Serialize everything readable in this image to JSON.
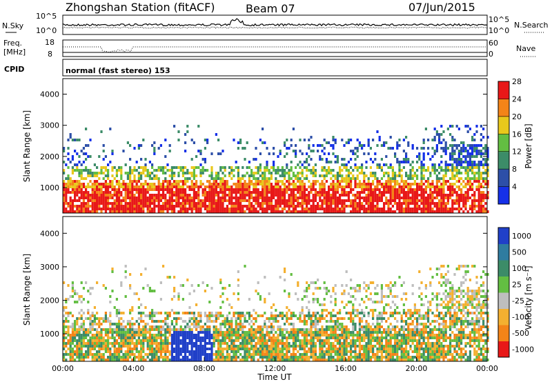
{
  "header": {
    "title": "Zhongshan Station (fitACF)",
    "beam": "Beam 07",
    "date": "07/Jun/2015"
  },
  "strips": {
    "nsky_label": "N.Sky",
    "nsky_ticks": [
      "10^5",
      "10^0"
    ],
    "nsearch_label": "N.Search",
    "nsearch_ticks": [
      "10^5",
      "10^0"
    ],
    "freq_label_1": "Freq.",
    "freq_label_2": "[MHz]",
    "freq_ticks": [
      "18",
      "8"
    ],
    "nave_label": "Nave",
    "nave_ticks": [
      "60",
      "0"
    ],
    "cpid_label": "CPID",
    "cpid_value": "normal (fast stereo) 153"
  },
  "chart_data": [
    {
      "type": "heatmap",
      "panel": "power",
      "xlabel": "",
      "ylabel": "Slant Range [km]",
      "y_ticks": [
        "1000",
        "2000",
        "3000",
        "4000"
      ],
      "ylim": [
        180,
        4500
      ],
      "colorbar_label": "Power [dB]",
      "colorbar_ticks": [
        "4",
        "8",
        "12",
        "16",
        "20",
        "24",
        "28"
      ],
      "colorbar_colors": [
        "#1530e8",
        "#2d4fa8",
        "#3c8c68",
        "#63be42",
        "#e8c81c",
        "#f48418",
        "#e81818"
      ],
      "colorbar_range": [
        0,
        30
      ]
    },
    {
      "type": "heatmap",
      "panel": "velocity",
      "xlabel": "Time UT",
      "ylabel": "Slant Range [km]",
      "x_ticks": [
        "00:00",
        "04:00",
        "08:00",
        "12:00",
        "16:00",
        "20:00",
        "00:00"
      ],
      "y_ticks": [
        "1000",
        "2000",
        "3000",
        "4000"
      ],
      "ylim": [
        180,
        4500
      ],
      "colorbar_label": "Velocity [m s⁻¹]",
      "colorbar_ticks": [
        "1000",
        "500",
        "100",
        "25",
        "-25",
        "-100",
        "-500",
        "-1000"
      ],
      "colorbar_colors": [
        "#2040c8",
        "#2f7ca0",
        "#3c8c68",
        "#63be42",
        "#bebebe",
        "#f4b030",
        "#f48418",
        "#e81818"
      ],
      "colorbar_range": [
        -1000,
        1000
      ]
    }
  ]
}
